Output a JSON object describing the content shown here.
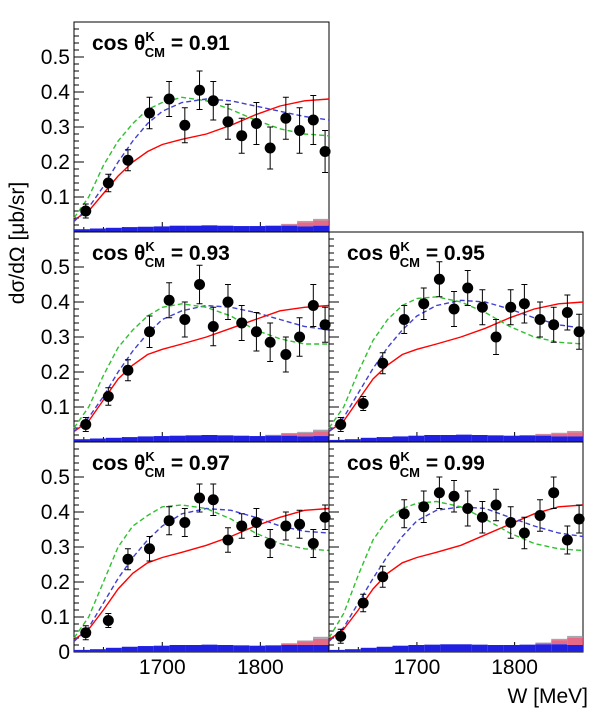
{
  "figure": {
    "ylabel": "dσ/dΩ [μb/sr]",
    "xlabel": "W [MeV]"
  },
  "colors": {
    "points": "#000000",
    "red_curve": "#ff0000",
    "blue_curve": "#4040d0",
    "green_curve": "#30c030",
    "syst_blue": "#2020e0",
    "syst_red": "#e05070",
    "syst_grey": "#9090a0"
  },
  "chart_data": [
    {
      "type": "scatter",
      "title": {
        "prefix": "cos",
        "theta": "θ",
        "sup": "K",
        "sub": "CM",
        "value": "= 0.91"
      },
      "xlim": [
        1610,
        1870
      ],
      "ylim": [
        0,
        0.6
      ],
      "xticks": [],
      "yticks": [
        "0.1",
        "0.2",
        "0.3",
        "0.4",
        "0.5"
      ],
      "points": {
        "x": [
          1622,
          1645,
          1665,
          1687,
          1707,
          1723,
          1738,
          1752,
          1767,
          1781,
          1796,
          1810,
          1826,
          1840,
          1854,
          1866
        ],
        "y": [
          0.06,
          0.14,
          0.205,
          0.34,
          0.38,
          0.305,
          0.405,
          0.375,
          0.315,
          0.275,
          0.31,
          0.24,
          0.325,
          0.29,
          0.32,
          0.23
        ],
        "err": [
          0.02,
          0.025,
          0.03,
          0.045,
          0.05,
          0.05,
          0.055,
          0.055,
          0.05,
          0.05,
          0.06,
          0.06,
          0.06,
          0.065,
          0.07,
          0.06
        ]
      },
      "curves": [
        {
          "color": "red",
          "style": "solid",
          "x": [
            1610,
            1625,
            1640,
            1655,
            1670,
            1685,
            1700,
            1720,
            1745,
            1770,
            1795,
            1820,
            1845,
            1870
          ],
          "y": [
            0.035,
            0.06,
            0.11,
            0.16,
            0.2,
            0.23,
            0.25,
            0.265,
            0.28,
            0.305,
            0.335,
            0.36,
            0.375,
            0.38
          ]
        },
        {
          "color": "blue",
          "style": "dashed",
          "x": [
            1610,
            1625,
            1640,
            1655,
            1670,
            1685,
            1700,
            1720,
            1745,
            1770,
            1795,
            1820,
            1845,
            1870
          ],
          "y": [
            0.03,
            0.07,
            0.13,
            0.2,
            0.26,
            0.31,
            0.345,
            0.37,
            0.38,
            0.375,
            0.36,
            0.345,
            0.33,
            0.32
          ]
        },
        {
          "color": "green",
          "style": "dashed",
          "x": [
            1610,
            1625,
            1640,
            1655,
            1670,
            1685,
            1700,
            1720,
            1745,
            1770,
            1795,
            1820,
            1845,
            1870
          ],
          "y": [
            0.04,
            0.1,
            0.19,
            0.26,
            0.31,
            0.35,
            0.37,
            0.385,
            0.375,
            0.35,
            0.32,
            0.295,
            0.28,
            0.275
          ]
        }
      ],
      "syst": {
        "blue": [
          0.008,
          0.01,
          0.012,
          0.014,
          0.015,
          0.016,
          0.018,
          0.018,
          0.019,
          0.018,
          0.017,
          0.017,
          0.018,
          0.018,
          0.016,
          0.018
        ],
        "red": [
          0,
          0,
          0,
          0,
          0,
          0,
          0,
          0,
          0,
          0,
          0,
          0,
          0,
          0.004,
          0.012,
          0.015
        ]
      }
    },
    {
      "type": "scatter",
      "title": {
        "prefix": "cos",
        "theta": "θ",
        "sup": "K",
        "sub": "CM",
        "value": "= 0.93"
      },
      "xlim": [
        1610,
        1870
      ],
      "ylim": [
        0,
        0.6
      ],
      "xticks": [],
      "yticks": [
        "0.1",
        "0.2",
        "0.3",
        "0.4",
        "0.5"
      ],
      "points": {
        "x": [
          1622,
          1645,
          1665,
          1687,
          1707,
          1723,
          1738,
          1752,
          1767,
          1781,
          1796,
          1810,
          1826,
          1840,
          1854,
          1866
        ],
        "y": [
          0.05,
          0.13,
          0.205,
          0.315,
          0.405,
          0.35,
          0.45,
          0.33,
          0.4,
          0.34,
          0.315,
          0.285,
          0.25,
          0.3,
          0.39,
          0.335
        ],
        "err": [
          0.02,
          0.025,
          0.03,
          0.045,
          0.05,
          0.05,
          0.055,
          0.055,
          0.05,
          0.05,
          0.055,
          0.055,
          0.05,
          0.055,
          0.06,
          0.05
        ]
      },
      "curves": [
        {
          "color": "red",
          "style": "solid",
          "x": [
            1610,
            1625,
            1640,
            1655,
            1670,
            1685,
            1700,
            1720,
            1745,
            1770,
            1795,
            1820,
            1845,
            1870
          ],
          "y": [
            0.03,
            0.06,
            0.12,
            0.18,
            0.22,
            0.25,
            0.265,
            0.28,
            0.3,
            0.325,
            0.35,
            0.375,
            0.385,
            0.39
          ]
        },
        {
          "color": "blue",
          "style": "dashed",
          "x": [
            1610,
            1625,
            1640,
            1655,
            1670,
            1685,
            1700,
            1720,
            1745,
            1770,
            1795,
            1820,
            1845,
            1870
          ],
          "y": [
            0.03,
            0.07,
            0.13,
            0.2,
            0.26,
            0.31,
            0.35,
            0.375,
            0.39,
            0.385,
            0.37,
            0.35,
            0.33,
            0.32
          ]
        },
        {
          "color": "green",
          "style": "dashed",
          "x": [
            1610,
            1625,
            1640,
            1655,
            1670,
            1685,
            1700,
            1720,
            1745,
            1770,
            1795,
            1820,
            1845,
            1870
          ],
          "y": [
            0.04,
            0.1,
            0.19,
            0.27,
            0.32,
            0.36,
            0.385,
            0.395,
            0.385,
            0.36,
            0.32,
            0.295,
            0.28,
            0.28
          ]
        }
      ],
      "syst": {
        "blue": [
          0.008,
          0.01,
          0.012,
          0.014,
          0.016,
          0.017,
          0.018,
          0.019,
          0.02,
          0.019,
          0.018,
          0.017,
          0.018,
          0.018,
          0.016,
          0.017
        ],
        "red": [
          0,
          0,
          0,
          0,
          0,
          0,
          0,
          0,
          0,
          0,
          0,
          0,
          0.002,
          0.006,
          0.01,
          0.014
        ]
      }
    },
    {
      "type": "scatter",
      "title": {
        "prefix": "cos",
        "theta": "θ",
        "sup": "K",
        "sub": "CM",
        "value": "= 0.95"
      },
      "xlim": [
        1610,
        1870
      ],
      "ylim": [
        0,
        0.6
      ],
      "xticks": [],
      "yticks": [],
      "points": {
        "x": [
          1622,
          1645,
          1665,
          1687,
          1707,
          1723,
          1738,
          1752,
          1767,
          1781,
          1796,
          1810,
          1826,
          1840,
          1854,
          1866
        ],
        "y": [
          0.05,
          0.11,
          0.225,
          0.35,
          0.395,
          0.465,
          0.38,
          0.44,
          0.385,
          0.3,
          0.385,
          0.395,
          0.35,
          0.335,
          0.37,
          0.315
        ],
        "err": [
          0.02,
          0.02,
          0.03,
          0.04,
          0.045,
          0.05,
          0.05,
          0.05,
          0.05,
          0.05,
          0.05,
          0.055,
          0.05,
          0.05,
          0.05,
          0.05
        ]
      },
      "curves": [
        {
          "color": "red",
          "style": "solid",
          "x": [
            1610,
            1625,
            1640,
            1655,
            1670,
            1685,
            1700,
            1720,
            1745,
            1770,
            1795,
            1820,
            1845,
            1870
          ],
          "y": [
            0.03,
            0.06,
            0.12,
            0.18,
            0.22,
            0.25,
            0.265,
            0.28,
            0.3,
            0.325,
            0.355,
            0.38,
            0.395,
            0.4
          ]
        },
        {
          "color": "blue",
          "style": "dashed",
          "x": [
            1610,
            1625,
            1640,
            1655,
            1670,
            1685,
            1700,
            1720,
            1745,
            1770,
            1795,
            1820,
            1845,
            1870
          ],
          "y": [
            0.03,
            0.07,
            0.14,
            0.21,
            0.27,
            0.32,
            0.36,
            0.39,
            0.405,
            0.4,
            0.38,
            0.355,
            0.335,
            0.325
          ]
        },
        {
          "color": "green",
          "style": "dashed",
          "x": [
            1610,
            1625,
            1640,
            1655,
            1670,
            1685,
            1700,
            1720,
            1745,
            1770,
            1795,
            1820,
            1845,
            1870
          ],
          "y": [
            0.04,
            0.1,
            0.2,
            0.29,
            0.35,
            0.39,
            0.41,
            0.415,
            0.4,
            0.37,
            0.33,
            0.3,
            0.285,
            0.28
          ]
        }
      ],
      "syst": {
        "blue": [
          0.006,
          0.008,
          0.012,
          0.014,
          0.016,
          0.018,
          0.02,
          0.02,
          0.021,
          0.02,
          0.019,
          0.018,
          0.019,
          0.018,
          0.016,
          0.016
        ],
        "red": [
          0,
          0,
          0,
          0,
          0,
          0,
          0,
          0,
          0,
          0,
          0,
          0,
          0,
          0.004,
          0.008,
          0.012
        ]
      }
    },
    {
      "type": "scatter",
      "title": {
        "prefix": "cos",
        "theta": "θ",
        "sup": "K",
        "sub": "CM",
        "value": "= 0.97"
      },
      "xlim": [
        1610,
        1870
      ],
      "ylim": [
        0,
        0.6
      ],
      "xticks": [
        "1700",
        "1800"
      ],
      "yticks": [
        "0",
        "0.1",
        "0.2",
        "0.3",
        "0.4",
        "0.5"
      ],
      "points": {
        "x": [
          1622,
          1645,
          1665,
          1687,
          1707,
          1723,
          1738,
          1752,
          1767,
          1781,
          1796,
          1810,
          1826,
          1840,
          1854,
          1866
        ],
        "y": [
          0.055,
          0.09,
          0.265,
          0.295,
          0.375,
          0.37,
          0.44,
          0.435,
          0.32,
          0.36,
          0.37,
          0.31,
          0.36,
          0.365,
          0.31,
          0.385
        ],
        "err": [
          0.02,
          0.02,
          0.03,
          0.035,
          0.04,
          0.04,
          0.04,
          0.045,
          0.035,
          0.035,
          0.04,
          0.04,
          0.04,
          0.04,
          0.04,
          0.035
        ]
      },
      "curves": [
        {
          "color": "red",
          "style": "solid",
          "x": [
            1610,
            1625,
            1640,
            1655,
            1670,
            1685,
            1700,
            1720,
            1745,
            1770,
            1795,
            1820,
            1845,
            1870
          ],
          "y": [
            0.035,
            0.065,
            0.12,
            0.18,
            0.225,
            0.255,
            0.27,
            0.285,
            0.305,
            0.33,
            0.36,
            0.385,
            0.405,
            0.41
          ]
        },
        {
          "color": "blue",
          "style": "dashed",
          "x": [
            1610,
            1625,
            1640,
            1655,
            1670,
            1685,
            1700,
            1720,
            1745,
            1770,
            1795,
            1820,
            1845,
            1870
          ],
          "y": [
            0.03,
            0.07,
            0.14,
            0.21,
            0.27,
            0.32,
            0.36,
            0.395,
            0.41,
            0.405,
            0.385,
            0.36,
            0.345,
            0.34
          ]
        },
        {
          "color": "green",
          "style": "dashed",
          "x": [
            1610,
            1625,
            1640,
            1655,
            1670,
            1685,
            1700,
            1720,
            1745,
            1770,
            1795,
            1820,
            1845,
            1870
          ],
          "y": [
            0.04,
            0.1,
            0.2,
            0.3,
            0.36,
            0.39,
            0.415,
            0.42,
            0.41,
            0.38,
            0.34,
            0.31,
            0.295,
            0.29
          ]
        }
      ],
      "syst": {
        "blue": [
          0.006,
          0.008,
          0.012,
          0.015,
          0.017,
          0.018,
          0.02,
          0.02,
          0.021,
          0.02,
          0.019,
          0.018,
          0.019,
          0.02,
          0.02,
          0.02
        ],
        "red": [
          0,
          0,
          0,
          0,
          0,
          0,
          0,
          0,
          0,
          0,
          0,
          0,
          0,
          0.004,
          0.01,
          0.018
        ]
      }
    },
    {
      "type": "scatter",
      "title": {
        "prefix": "cos",
        "theta": "θ",
        "sup": "K",
        "sub": "CM",
        "value": "= 0.99"
      },
      "xlim": [
        1610,
        1870
      ],
      "ylim": [
        0,
        0.6
      ],
      "xticks": [
        "1700",
        "1800"
      ],
      "yticks": [],
      "points": {
        "x": [
          1622,
          1645,
          1665,
          1687,
          1707,
          1723,
          1738,
          1752,
          1767,
          1781,
          1796,
          1810,
          1826,
          1840,
          1854,
          1866
        ],
        "y": [
          0.045,
          0.14,
          0.215,
          0.395,
          0.415,
          0.455,
          0.445,
          0.41,
          0.385,
          0.42,
          0.37,
          0.34,
          0.39,
          0.455,
          0.32,
          0.38
        ],
        "err": [
          0.02,
          0.025,
          0.03,
          0.04,
          0.045,
          0.045,
          0.045,
          0.05,
          0.045,
          0.045,
          0.045,
          0.045,
          0.045,
          0.045,
          0.04,
          0.04
        ]
      },
      "curves": [
        {
          "color": "red",
          "style": "solid",
          "x": [
            1610,
            1625,
            1640,
            1655,
            1670,
            1685,
            1700,
            1720,
            1745,
            1770,
            1795,
            1820,
            1845,
            1870
          ],
          "y": [
            0.035,
            0.065,
            0.12,
            0.18,
            0.225,
            0.255,
            0.27,
            0.285,
            0.305,
            0.335,
            0.365,
            0.395,
            0.415,
            0.42
          ]
        },
        {
          "color": "blue",
          "style": "dashed",
          "x": [
            1610,
            1625,
            1640,
            1655,
            1670,
            1685,
            1700,
            1720,
            1745,
            1770,
            1795,
            1820,
            1845,
            1870
          ],
          "y": [
            0.03,
            0.07,
            0.14,
            0.21,
            0.275,
            0.33,
            0.375,
            0.405,
            0.415,
            0.41,
            0.385,
            0.36,
            0.34,
            0.33
          ]
        },
        {
          "color": "green",
          "style": "dashed",
          "x": [
            1610,
            1625,
            1640,
            1655,
            1670,
            1685,
            1700,
            1720,
            1745,
            1770,
            1795,
            1820,
            1845,
            1870
          ],
          "y": [
            0.04,
            0.11,
            0.22,
            0.32,
            0.38,
            0.41,
            0.425,
            0.43,
            0.415,
            0.38,
            0.34,
            0.31,
            0.295,
            0.29
          ]
        }
      ],
      "syst": {
        "blue": [
          0.006,
          0.008,
          0.012,
          0.015,
          0.018,
          0.02,
          0.021,
          0.022,
          0.022,
          0.021,
          0.02,
          0.02,
          0.021,
          0.022,
          0.022,
          0.02
        ],
        "red": [
          0,
          0,
          0,
          0,
          0,
          0,
          0,
          0,
          0,
          0,
          0,
          0,
          0,
          0.004,
          0.012,
          0.02
        ]
      }
    }
  ]
}
